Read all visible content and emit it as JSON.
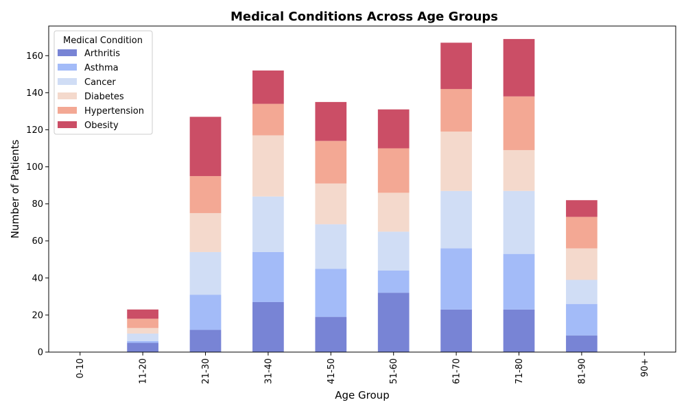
{
  "chart_data": {
    "type": "bar",
    "stacked": true,
    "title": "Medical Conditions Across Age Groups",
    "xlabel": "Age Group",
    "ylabel": "Number of Patients",
    "ylim": [
      0,
      176
    ],
    "yticks": [
      0,
      20,
      40,
      60,
      80,
      100,
      120,
      140,
      160
    ],
    "grid": false,
    "legend": {
      "title": "Medical Condition",
      "placement": "top-left"
    },
    "categories": [
      "0-10",
      "11-20",
      "21-30",
      "31-40",
      "41-50",
      "51-60",
      "61-70",
      "71-80",
      "81-90",
      "90+"
    ],
    "series": [
      {
        "name": "Arthritis",
        "color": "#7884d5",
        "values": [
          0,
          5,
          12,
          27,
          19,
          32,
          23,
          23,
          9,
          0
        ]
      },
      {
        "name": "Asthma",
        "color": "#a3bbf8",
        "values": [
          0,
          1,
          19,
          27,
          26,
          12,
          33,
          30,
          17,
          0
        ]
      },
      {
        "name": "Cancer",
        "color": "#d0ddf5",
        "values": [
          0,
          4,
          23,
          30,
          24,
          21,
          31,
          34,
          13,
          0
        ]
      },
      {
        "name": "Diabetes",
        "color": "#f4d9cc",
        "values": [
          0,
          3,
          21,
          33,
          22,
          21,
          32,
          22,
          17,
          0
        ]
      },
      {
        "name": "Hypertension",
        "color": "#f3a894",
        "values": [
          0,
          5,
          20,
          17,
          23,
          24,
          23,
          29,
          17,
          0
        ]
      },
      {
        "name": "Obesity",
        "color": "#cb4e66",
        "values": [
          0,
          5,
          32,
          18,
          21,
          21,
          25,
          31,
          9,
          0
        ]
      }
    ]
  }
}
